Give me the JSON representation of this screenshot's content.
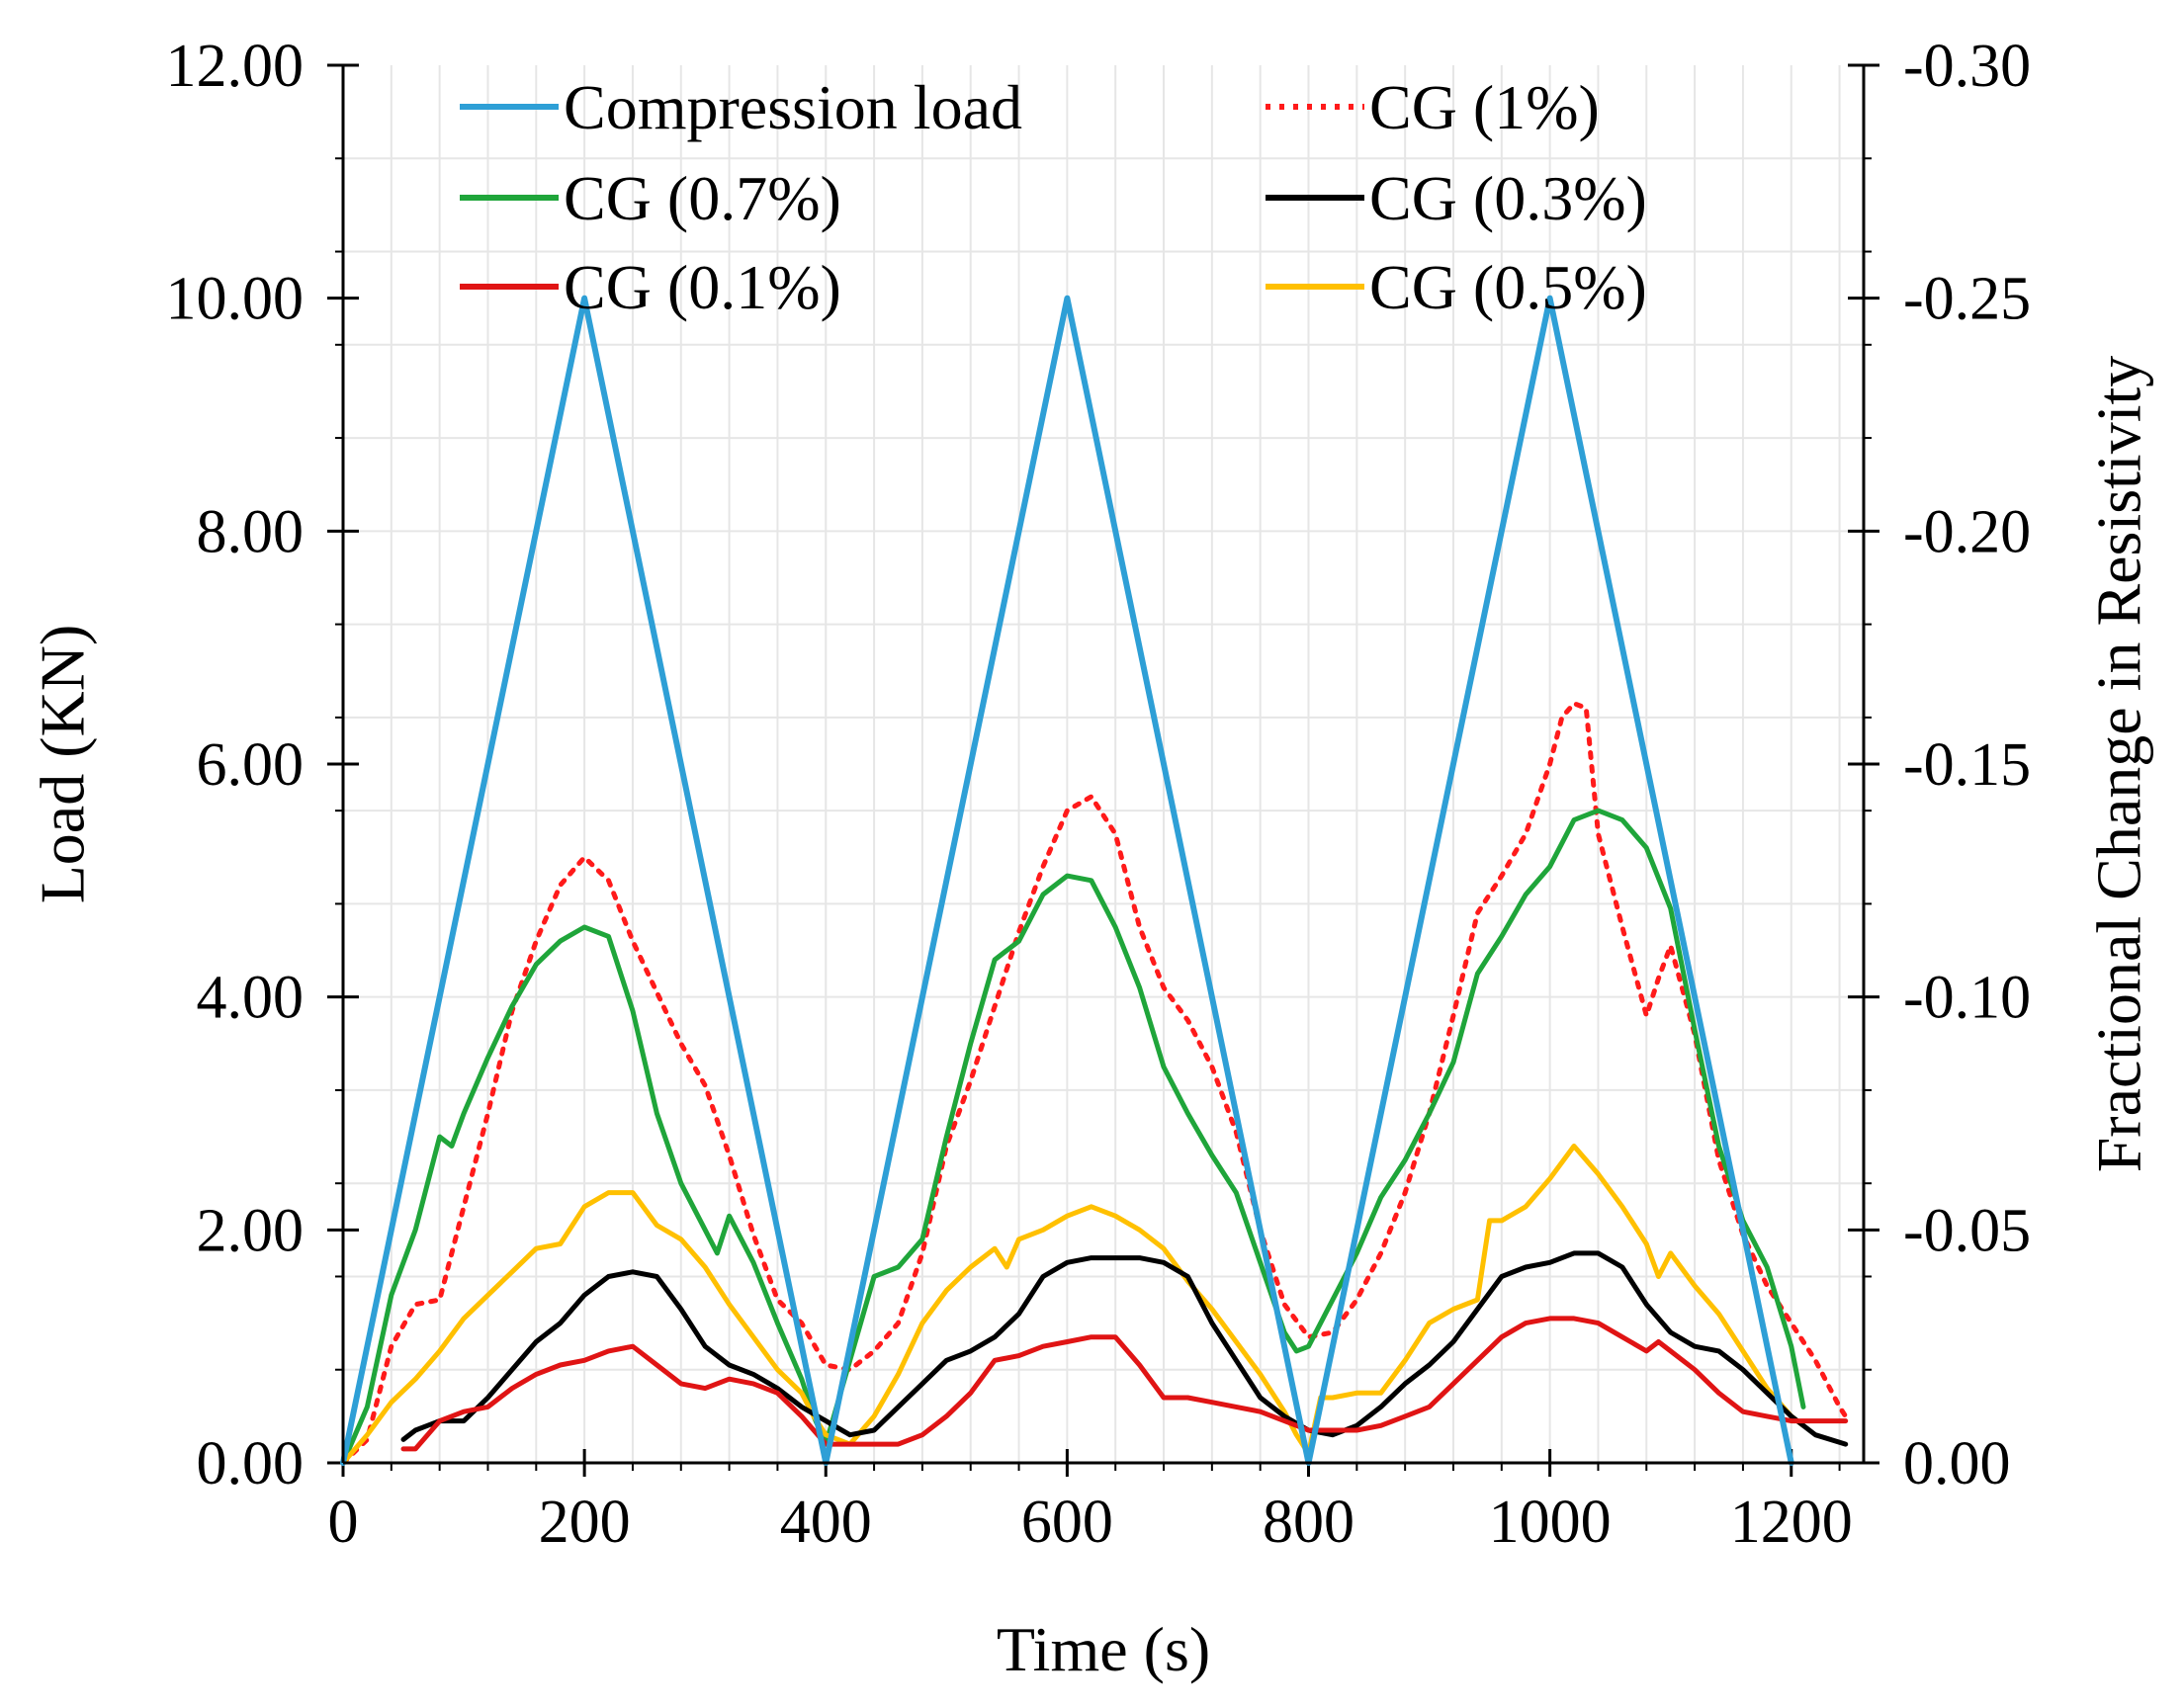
{
  "chart_data": {
    "type": "line",
    "title": "",
    "xlabel": "Time (s)",
    "ylabel": "Load (KN)",
    "y2label": "Fractional Change in Resistivity",
    "xlim": [
      0,
      1260
    ],
    "ylim": [
      0,
      12
    ],
    "y2lim": [
      0,
      -0.3
    ],
    "xticks": [
      0,
      200,
      400,
      600,
      800,
      1000,
      1200
    ],
    "xtick_labels": [
      "0",
      "200",
      "400",
      "600",
      "800",
      "1000",
      "1200"
    ],
    "yticks": [
      0,
      2,
      4,
      6,
      8,
      10,
      12
    ],
    "ytick_labels": [
      "0.00",
      "2.00",
      "4.00",
      "6.00",
      "8.00",
      "10.00",
      "12.00"
    ],
    "y2ticks": [
      0,
      -0.05,
      -0.1,
      -0.15,
      -0.2,
      -0.25,
      -0.3
    ],
    "y2tick_labels": [
      "0.00",
      "-0.05",
      "-0.10",
      "-0.15",
      "-0.20",
      "-0.25",
      "-0.30"
    ],
    "grid": true,
    "legend_position": "top",
    "series": [
      {
        "name": "Compression load",
        "axis": "left",
        "color": "#2E9FD6",
        "dash": "solid",
        "x": [
          0,
          200,
          400,
          600,
          800,
          1000,
          1200
        ],
        "y": [
          0,
          10,
          0,
          10,
          0,
          10,
          0
        ]
      },
      {
        "name": "CG (1%)",
        "axis": "right",
        "color": "#FF1A1A",
        "dash": "dotted",
        "x": [
          0,
          20,
          40,
          60,
          80,
          100,
          120,
          140,
          160,
          180,
          200,
          220,
          240,
          260,
          280,
          300,
          320,
          340,
          360,
          380,
          400,
          420,
          440,
          460,
          480,
          500,
          520,
          540,
          560,
          580,
          600,
          620,
          640,
          660,
          680,
          700,
          720,
          740,
          760,
          780,
          800,
          820,
          840,
          860,
          880,
          900,
          920,
          940,
          960,
          980,
          1000,
          1010,
          1020,
          1030,
          1040,
          1060,
          1080,
          1090,
          1100,
          1120,
          1140,
          1160,
          1180,
          1200,
          1220,
          1240,
          1245
        ],
        "y": [
          0,
          -0.005,
          -0.025,
          -0.034,
          -0.035,
          -0.055,
          -0.075,
          -0.097,
          -0.112,
          -0.124,
          -0.13,
          -0.125,
          -0.112,
          -0.101,
          -0.09,
          -0.081,
          -0.066,
          -0.049,
          -0.035,
          -0.03,
          -0.021,
          -0.02,
          -0.024,
          -0.03,
          -0.045,
          -0.068,
          -0.082,
          -0.098,
          -0.114,
          -0.128,
          -0.14,
          -0.143,
          -0.135,
          -0.115,
          -0.102,
          -0.095,
          -0.085,
          -0.071,
          -0.05,
          -0.034,
          -0.027,
          -0.028,
          -0.035,
          -0.045,
          -0.058,
          -0.075,
          -0.096,
          -0.118,
          -0.126,
          -0.135,
          -0.15,
          -0.16,
          -0.163,
          -0.162,
          -0.135,
          -0.115,
          -0.096,
          -0.104,
          -0.111,
          -0.092,
          -0.065,
          -0.049,
          -0.038,
          -0.03,
          -0.022,
          -0.012,
          -0.01
        ]
      },
      {
        "name": "CG (0.7%)",
        "axis": "right",
        "color": "#1FA53A",
        "dash": "solid",
        "x": [
          0,
          20,
          40,
          60,
          80,
          90,
          100,
          120,
          140,
          160,
          180,
          200,
          220,
          240,
          260,
          280,
          300,
          310,
          320,
          340,
          360,
          380,
          390,
          400,
          420,
          440,
          460,
          480,
          500,
          520,
          540,
          560,
          580,
          600,
          620,
          640,
          660,
          680,
          700,
          720,
          740,
          760,
          780,
          790,
          800,
          820,
          840,
          860,
          880,
          900,
          920,
          940,
          960,
          980,
          1000,
          1020,
          1040,
          1060,
          1080,
          1100,
          1120,
          1140,
          1160,
          1180,
          1200,
          1210
        ],
        "y": [
          0,
          -0.012,
          -0.036,
          -0.05,
          -0.07,
          -0.068,
          -0.075,
          -0.087,
          -0.098,
          -0.107,
          -0.112,
          -0.115,
          -0.113,
          -0.097,
          -0.075,
          -0.06,
          -0.05,
          -0.045,
          -0.053,
          -0.043,
          -0.03,
          -0.018,
          -0.01,
          -0.004,
          -0.022,
          -0.04,
          -0.042,
          -0.048,
          -0.07,
          -0.09,
          -0.108,
          -0.112,
          -0.122,
          -0.126,
          -0.125,
          -0.115,
          -0.102,
          -0.085,
          -0.075,
          -0.066,
          -0.058,
          -0.043,
          -0.028,
          -0.024,
          -0.025,
          -0.035,
          -0.045,
          -0.057,
          -0.065,
          -0.075,
          -0.086,
          -0.105,
          -0.113,
          -0.122,
          -0.128,
          -0.138,
          -0.14,
          -0.138,
          -0.132,
          -0.119,
          -0.093,
          -0.068,
          -0.052,
          -0.042,
          -0.025,
          -0.012
        ]
      },
      {
        "name": "CG (0.3%)",
        "axis": "right",
        "color": "#000000",
        "dash": "solid",
        "x": [
          50,
          60,
          70,
          80,
          100,
          120,
          140,
          160,
          180,
          200,
          220,
          240,
          260,
          280,
          300,
          320,
          340,
          360,
          380,
          400,
          420,
          440,
          460,
          480,
          500,
          520,
          540,
          560,
          580,
          600,
          620,
          640,
          660,
          680,
          700,
          720,
          740,
          760,
          780,
          800,
          820,
          840,
          860,
          880,
          900,
          920,
          940,
          960,
          980,
          1000,
          1020,
          1040,
          1060,
          1080,
          1100,
          1120,
          1140,
          1160,
          1180,
          1200,
          1220,
          1245
        ],
        "y": [
          -0.005,
          -0.007,
          -0.008,
          -0.009,
          -0.009,
          -0.014,
          -0.02,
          -0.026,
          -0.03,
          -0.036,
          -0.04,
          -0.041,
          -0.04,
          -0.033,
          -0.025,
          -0.021,
          -0.019,
          -0.016,
          -0.012,
          -0.009,
          -0.006,
          -0.007,
          -0.012,
          -0.017,
          -0.022,
          -0.024,
          -0.027,
          -0.032,
          -0.04,
          -0.043,
          -0.044,
          -0.044,
          -0.044,
          -0.043,
          -0.04,
          -0.03,
          -0.022,
          -0.014,
          -0.01,
          -0.007,
          -0.006,
          -0.008,
          -0.012,
          -0.017,
          -0.021,
          -0.026,
          -0.033,
          -0.04,
          -0.042,
          -0.043,
          -0.045,
          -0.045,
          -0.042,
          -0.034,
          -0.028,
          -0.025,
          -0.024,
          -0.02,
          -0.015,
          -0.01,
          -0.006,
          -0.004
        ]
      },
      {
        "name": "CG (0.1%)",
        "axis": "right",
        "color": "#E01414",
        "dash": "solid",
        "x": [
          50,
          60,
          80,
          100,
          120,
          140,
          160,
          180,
          200,
          220,
          240,
          260,
          280,
          300,
          320,
          340,
          360,
          380,
          400,
          420,
          440,
          460,
          480,
          500,
          520,
          540,
          560,
          580,
          600,
          620,
          640,
          660,
          680,
          700,
          720,
          740,
          760,
          780,
          800,
          820,
          840,
          860,
          880,
          900,
          920,
          940,
          960,
          980,
          1000,
          1020,
          1040,
          1060,
          1080,
          1090,
          1100,
          1120,
          1140,
          1160,
          1180,
          1200,
          1220,
          1245
        ],
        "y": [
          -0.003,
          -0.003,
          -0.009,
          -0.011,
          -0.012,
          -0.016,
          -0.019,
          -0.021,
          -0.022,
          -0.024,
          -0.025,
          -0.021,
          -0.017,
          -0.016,
          -0.018,
          -0.017,
          -0.015,
          -0.01,
          -0.004,
          -0.004,
          -0.004,
          -0.004,
          -0.006,
          -0.01,
          -0.015,
          -0.022,
          -0.023,
          -0.025,
          -0.026,
          -0.027,
          -0.027,
          -0.021,
          -0.014,
          -0.014,
          -0.013,
          -0.012,
          -0.011,
          -0.009,
          -0.007,
          -0.007,
          -0.007,
          -0.008,
          -0.01,
          -0.012,
          -0.017,
          -0.022,
          -0.027,
          -0.03,
          -0.031,
          -0.031,
          -0.03,
          -0.027,
          -0.024,
          -0.026,
          -0.024,
          -0.02,
          -0.015,
          -0.011,
          -0.01,
          -0.009,
          -0.009,
          -0.009
        ]
      },
      {
        "name": "CG (0.5%)",
        "axis": "right",
        "color": "#FFC000",
        "dash": "solid",
        "x": [
          0,
          20,
          40,
          60,
          80,
          100,
          120,
          140,
          160,
          180,
          200,
          220,
          240,
          260,
          280,
          300,
          320,
          340,
          360,
          380,
          390,
          400,
          420,
          440,
          460,
          480,
          500,
          520,
          540,
          550,
          560,
          580,
          600,
          620,
          640,
          660,
          680,
          700,
          720,
          740,
          760,
          780,
          790,
          800,
          810,
          820,
          840,
          860,
          880,
          900,
          920,
          940,
          950,
          960,
          980,
          1000,
          1020,
          1040,
          1060,
          1080,
          1090,
          1100,
          1120,
          1140,
          1160,
          1180,
          1200,
          1210
        ],
        "y": [
          0,
          -0.006,
          -0.013,
          -0.018,
          -0.024,
          -0.031,
          -0.036,
          -0.041,
          -0.046,
          -0.047,
          -0.055,
          -0.058,
          -0.058,
          -0.051,
          -0.048,
          -0.042,
          -0.034,
          -0.027,
          -0.02,
          -0.015,
          -0.01,
          -0.006,
          -0.004,
          -0.01,
          -0.019,
          -0.03,
          -0.037,
          -0.042,
          -0.046,
          -0.042,
          -0.048,
          -0.05,
          -0.053,
          -0.055,
          -0.053,
          -0.05,
          -0.046,
          -0.039,
          -0.033,
          -0.026,
          -0.019,
          -0.011,
          -0.006,
          -0.002,
          -0.014,
          -0.014,
          -0.015,
          -0.015,
          -0.022,
          -0.03,
          -0.033,
          -0.035,
          -0.052,
          -0.052,
          -0.055,
          -0.061,
          -0.068,
          -0.062,
          -0.055,
          -0.047,
          -0.04,
          -0.045,
          -0.038,
          -0.032,
          -0.024,
          -0.016,
          -0.01,
          -0.008
        ]
      }
    ]
  }
}
